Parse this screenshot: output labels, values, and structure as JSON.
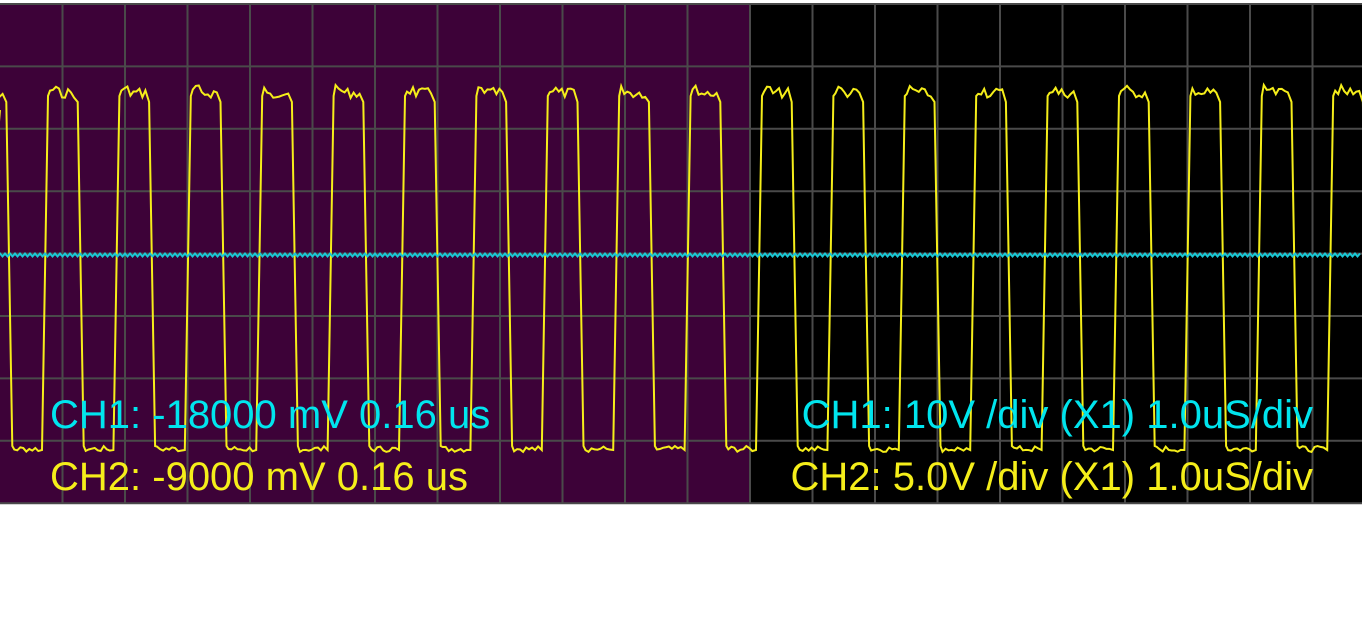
{
  "readouts": {
    "left": {
      "ch1": "CH1: -18000 mV 0.16 us",
      "ch2": "CH2: -9000 mV 0.16 us"
    },
    "right": {
      "ch1": "CH1: 10V /div (X1) 1.0uS/div",
      "ch2": "CH2: 5.0V /div (X1) 1.0uS/div"
    }
  }
}
